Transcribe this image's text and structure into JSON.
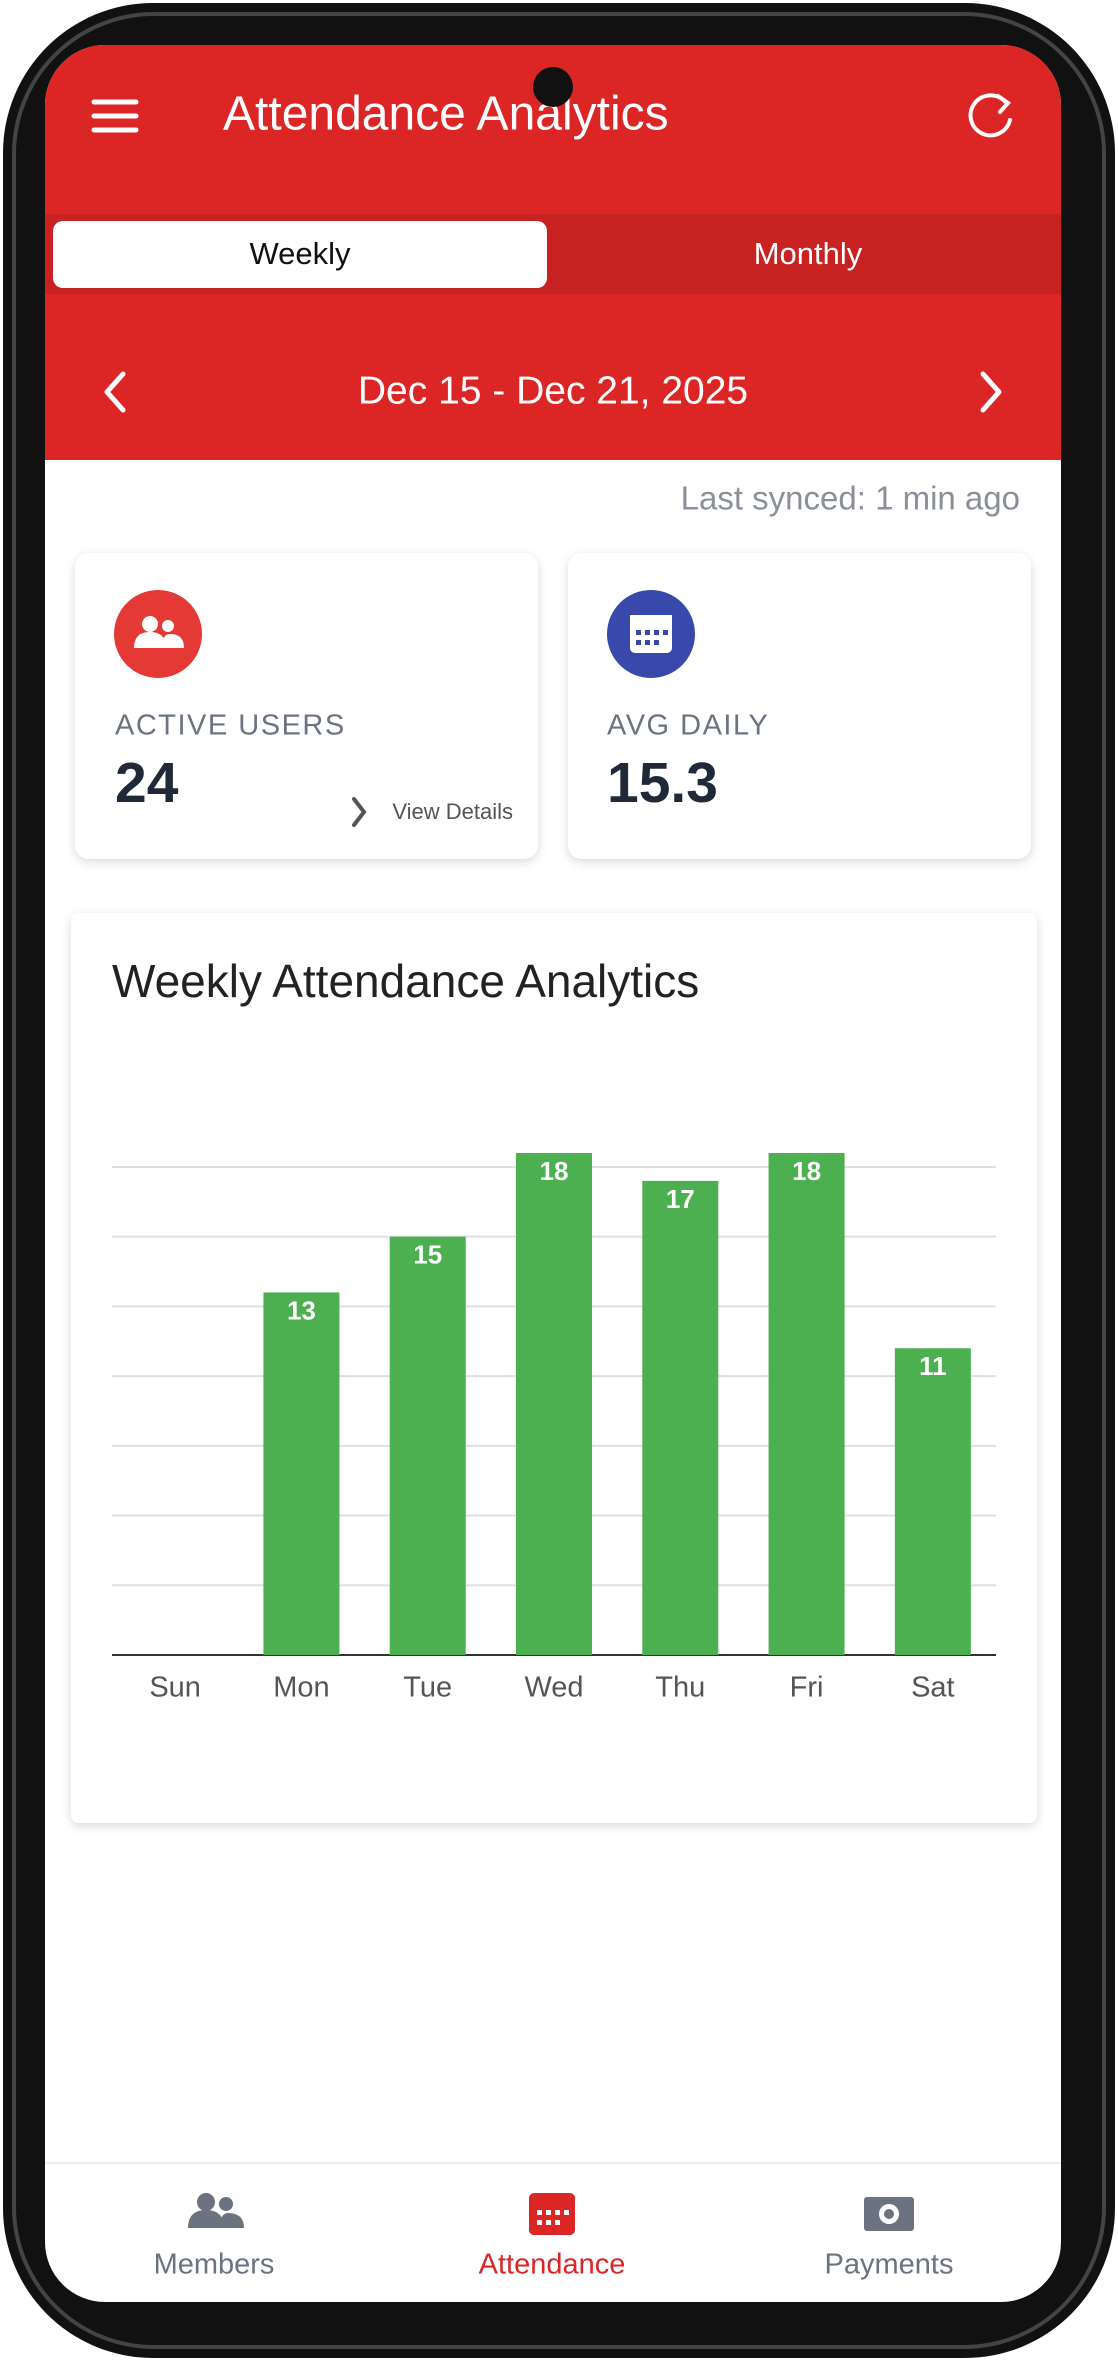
{
  "header": {
    "title": "Attendance Analytics"
  },
  "tabs": [
    "Weekly",
    "Monthly"
  ],
  "date_range": "Dec 15 - Dec 21, 2025",
  "last_synced": "Last synced: 1 min ago",
  "stats": [
    {
      "label": "ACTIVE USERS",
      "value": 24,
      "link": "View Details"
    },
    {
      "label": "AVG DAILY",
      "value": 15.3
    }
  ],
  "chart_data": {
    "type": "bar",
    "title": "Weekly Attendance Analytics",
    "categories": [
      "Sun",
      "Mon",
      "Tue",
      "Wed",
      "Thu",
      "Fri",
      "Sat"
    ],
    "values": [
      0,
      13,
      15,
      18,
      17,
      18,
      11
    ],
    "color": "#4caf50",
    "ylim": [
      0,
      18
    ],
    "yticks": [
      0,
      2.5,
      5,
      7.5,
      10,
      12.5,
      15,
      17.5
    ],
    "grid": true
  },
  "nav": [
    "Members",
    "Attendance",
    "Payments"
  ]
}
